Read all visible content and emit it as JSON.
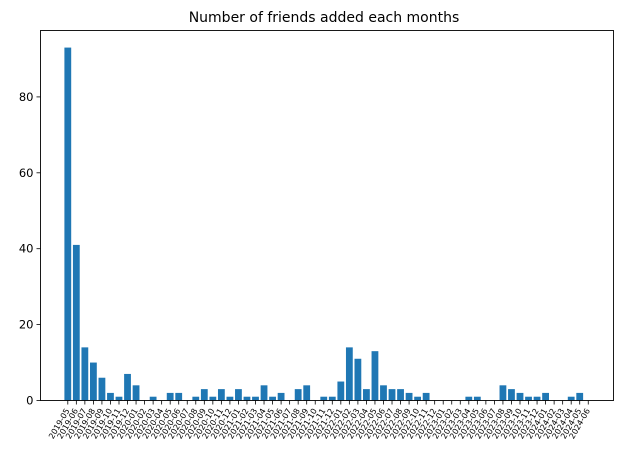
{
  "chart_data": {
    "type": "bar",
    "title": "Number of friends added each months",
    "xlabel": "",
    "ylabel": "",
    "ylim": [
      0,
      97.5
    ],
    "yticks": [
      0,
      20,
      40,
      60,
      80
    ],
    "categories": [
      "2019-05",
      "2019-06",
      "2019-07",
      "2019-08",
      "2019-09",
      "2019-10",
      "2019-11",
      "2019-12",
      "2020-01",
      "2020-02",
      "2020-03",
      "2020-04",
      "2020-05",
      "2020-06",
      "2020-07",
      "2020-08",
      "2020-09",
      "2020-10",
      "2020-11",
      "2020-12",
      "2021-01",
      "2021-02",
      "2021-03",
      "2021-04",
      "2021-05",
      "2021-06",
      "2021-07",
      "2021-08",
      "2021-09",
      "2021-10",
      "2021-11",
      "2021-12",
      "2022-01",
      "2022-02",
      "2022-03",
      "2022-04",
      "2022-05",
      "2022-06",
      "2022-07",
      "2022-08",
      "2022-09",
      "2022-10",
      "2022-11",
      "2022-12",
      "2023-01",
      "2023-02",
      "2023-03",
      "2023-04",
      "2023-05",
      "2023-06",
      "2023-07",
      "2023-08",
      "2023-09",
      "2023-10",
      "2023-11",
      "2023-12",
      "2024-01",
      "2024-02",
      "2024-03",
      "2024-04",
      "2024-05",
      "2024-06"
    ],
    "values": [
      93,
      41,
      14,
      10,
      6,
      2,
      1,
      7,
      4,
      0,
      1,
      0,
      2,
      2,
      0,
      1,
      3,
      1,
      3,
      1,
      3,
      1,
      1,
      4,
      1,
      2,
      0,
      3,
      4,
      0,
      1,
      1,
      5,
      14,
      11,
      3,
      13,
      4,
      3,
      3,
      2,
      1,
      2,
      0,
      0,
      0,
      0,
      1,
      1,
      0,
      0,
      4,
      3,
      2,
      1,
      1,
      2,
      0,
      0,
      1,
      2,
      0
    ],
    "bar_color": "#1f77b4",
    "grid": false
  }
}
